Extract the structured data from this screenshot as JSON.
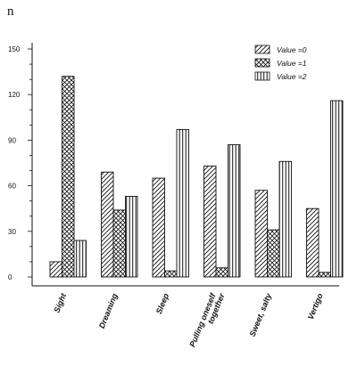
{
  "chart_data": {
    "type": "bar",
    "title": "",
    "ylabel": "n",
    "xlabel": "",
    "ylim": [
      0,
      150
    ],
    "yticks": [
      0,
      30,
      60,
      90,
      120,
      150
    ],
    "grid": false,
    "legend_position": "top-right",
    "categories": [
      "Sight",
      "Dreaming",
      "Sleep",
      "Pulling oneself together",
      "Sweet, salty",
      "Vertigo"
    ],
    "series": [
      {
        "name": "Value =0",
        "pattern": "diagonal-lines",
        "values": [
          10,
          69,
          65,
          73,
          57,
          45
        ]
      },
      {
        "name": "Value =1",
        "pattern": "crosshatch",
        "values": [
          132,
          44,
          4,
          6,
          31,
          3
        ]
      },
      {
        "name": "Value =2",
        "pattern": "vertical-lines",
        "values": [
          24,
          53,
          97,
          87,
          76,
          116
        ]
      }
    ]
  }
}
